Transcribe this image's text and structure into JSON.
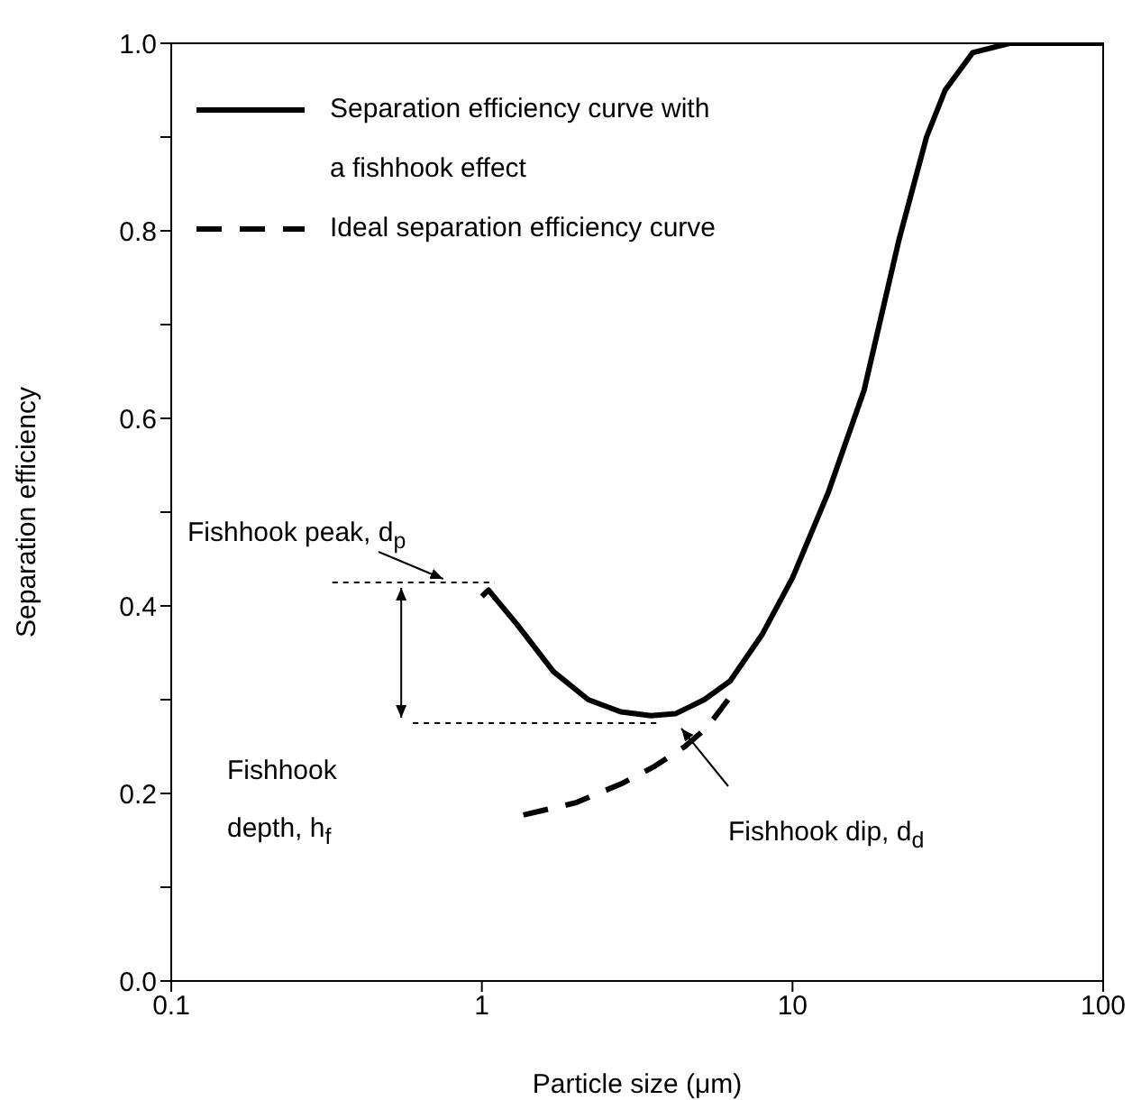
{
  "chart_data": {
    "type": "line",
    "xlabel": "Particle size (μm)",
    "ylabel": "Separation efficiency",
    "log": "x",
    "xlim": [
      0.1,
      100
    ],
    "xticks": [
      0.1,
      1,
      10,
      100
    ],
    "ylim": [
      0,
      1
    ],
    "yticks": [
      {
        "value": 0,
        "label": "0.0"
      },
      {
        "value": 0.1,
        "label": null
      },
      {
        "value": 0.2,
        "label": "0.2"
      },
      {
        "value": 0.3,
        "label": null
      },
      {
        "value": 0.4,
        "label": "0.4"
      },
      {
        "value": 0.5,
        "label": null
      },
      {
        "value": 0.6,
        "label": "0.6"
      },
      {
        "value": 0.7,
        "label": null
      },
      {
        "value": 0.8,
        "label": "0.8"
      },
      {
        "value": 0.9,
        "label": null
      },
      {
        "value": 1,
        "label": "1.0"
      }
    ],
    "grid": false,
    "legend": "top left",
    "marker": "none",
    "series": [
      {
        "name": "Separation efficiency curve with a fishhook effect",
        "color": "#000000",
        "line_style": "solid",
        "x": [
          1,
          1.05,
          1.3,
          1.7,
          2.2,
          2.8,
          3.5,
          4.2,
          5.2,
          6.3,
          8,
          10,
          13,
          17,
          22,
          27,
          31,
          38,
          50,
          70,
          100
        ],
        "values": [
          0.41,
          0.417,
          0.38,
          0.33,
          0.3,
          0.287,
          0.283,
          0.285,
          0.3,
          0.32,
          0.37,
          0.43,
          0.52,
          0.63,
          0.79,
          0.9,
          0.95,
          0.99,
          1,
          1,
          1
        ]
      },
      {
        "name": "Ideal separation efficiency curve",
        "color": "#000000",
        "line_style": "dashed",
        "x": [
          1.36,
          2,
          2.8,
          3.6,
          4.5,
          5.3,
          6.2
        ],
        "values": [
          0.177,
          0.19,
          0.21,
          0.229,
          0.25,
          0.27,
          0.3
        ]
      }
    ],
    "ref_lines": [
      {
        "axis": "y",
        "value": 0.425,
        "line_style": "dotted"
      },
      {
        "axis": "y",
        "value": 0.275,
        "line_style": "dotted"
      }
    ],
    "annotations": [
      "Fishhook peak, d$_{p}$",
      "Fishhook depth, h$_{f}$",
      "Fishhook dip, d$_{d}$"
    ]
  }
}
